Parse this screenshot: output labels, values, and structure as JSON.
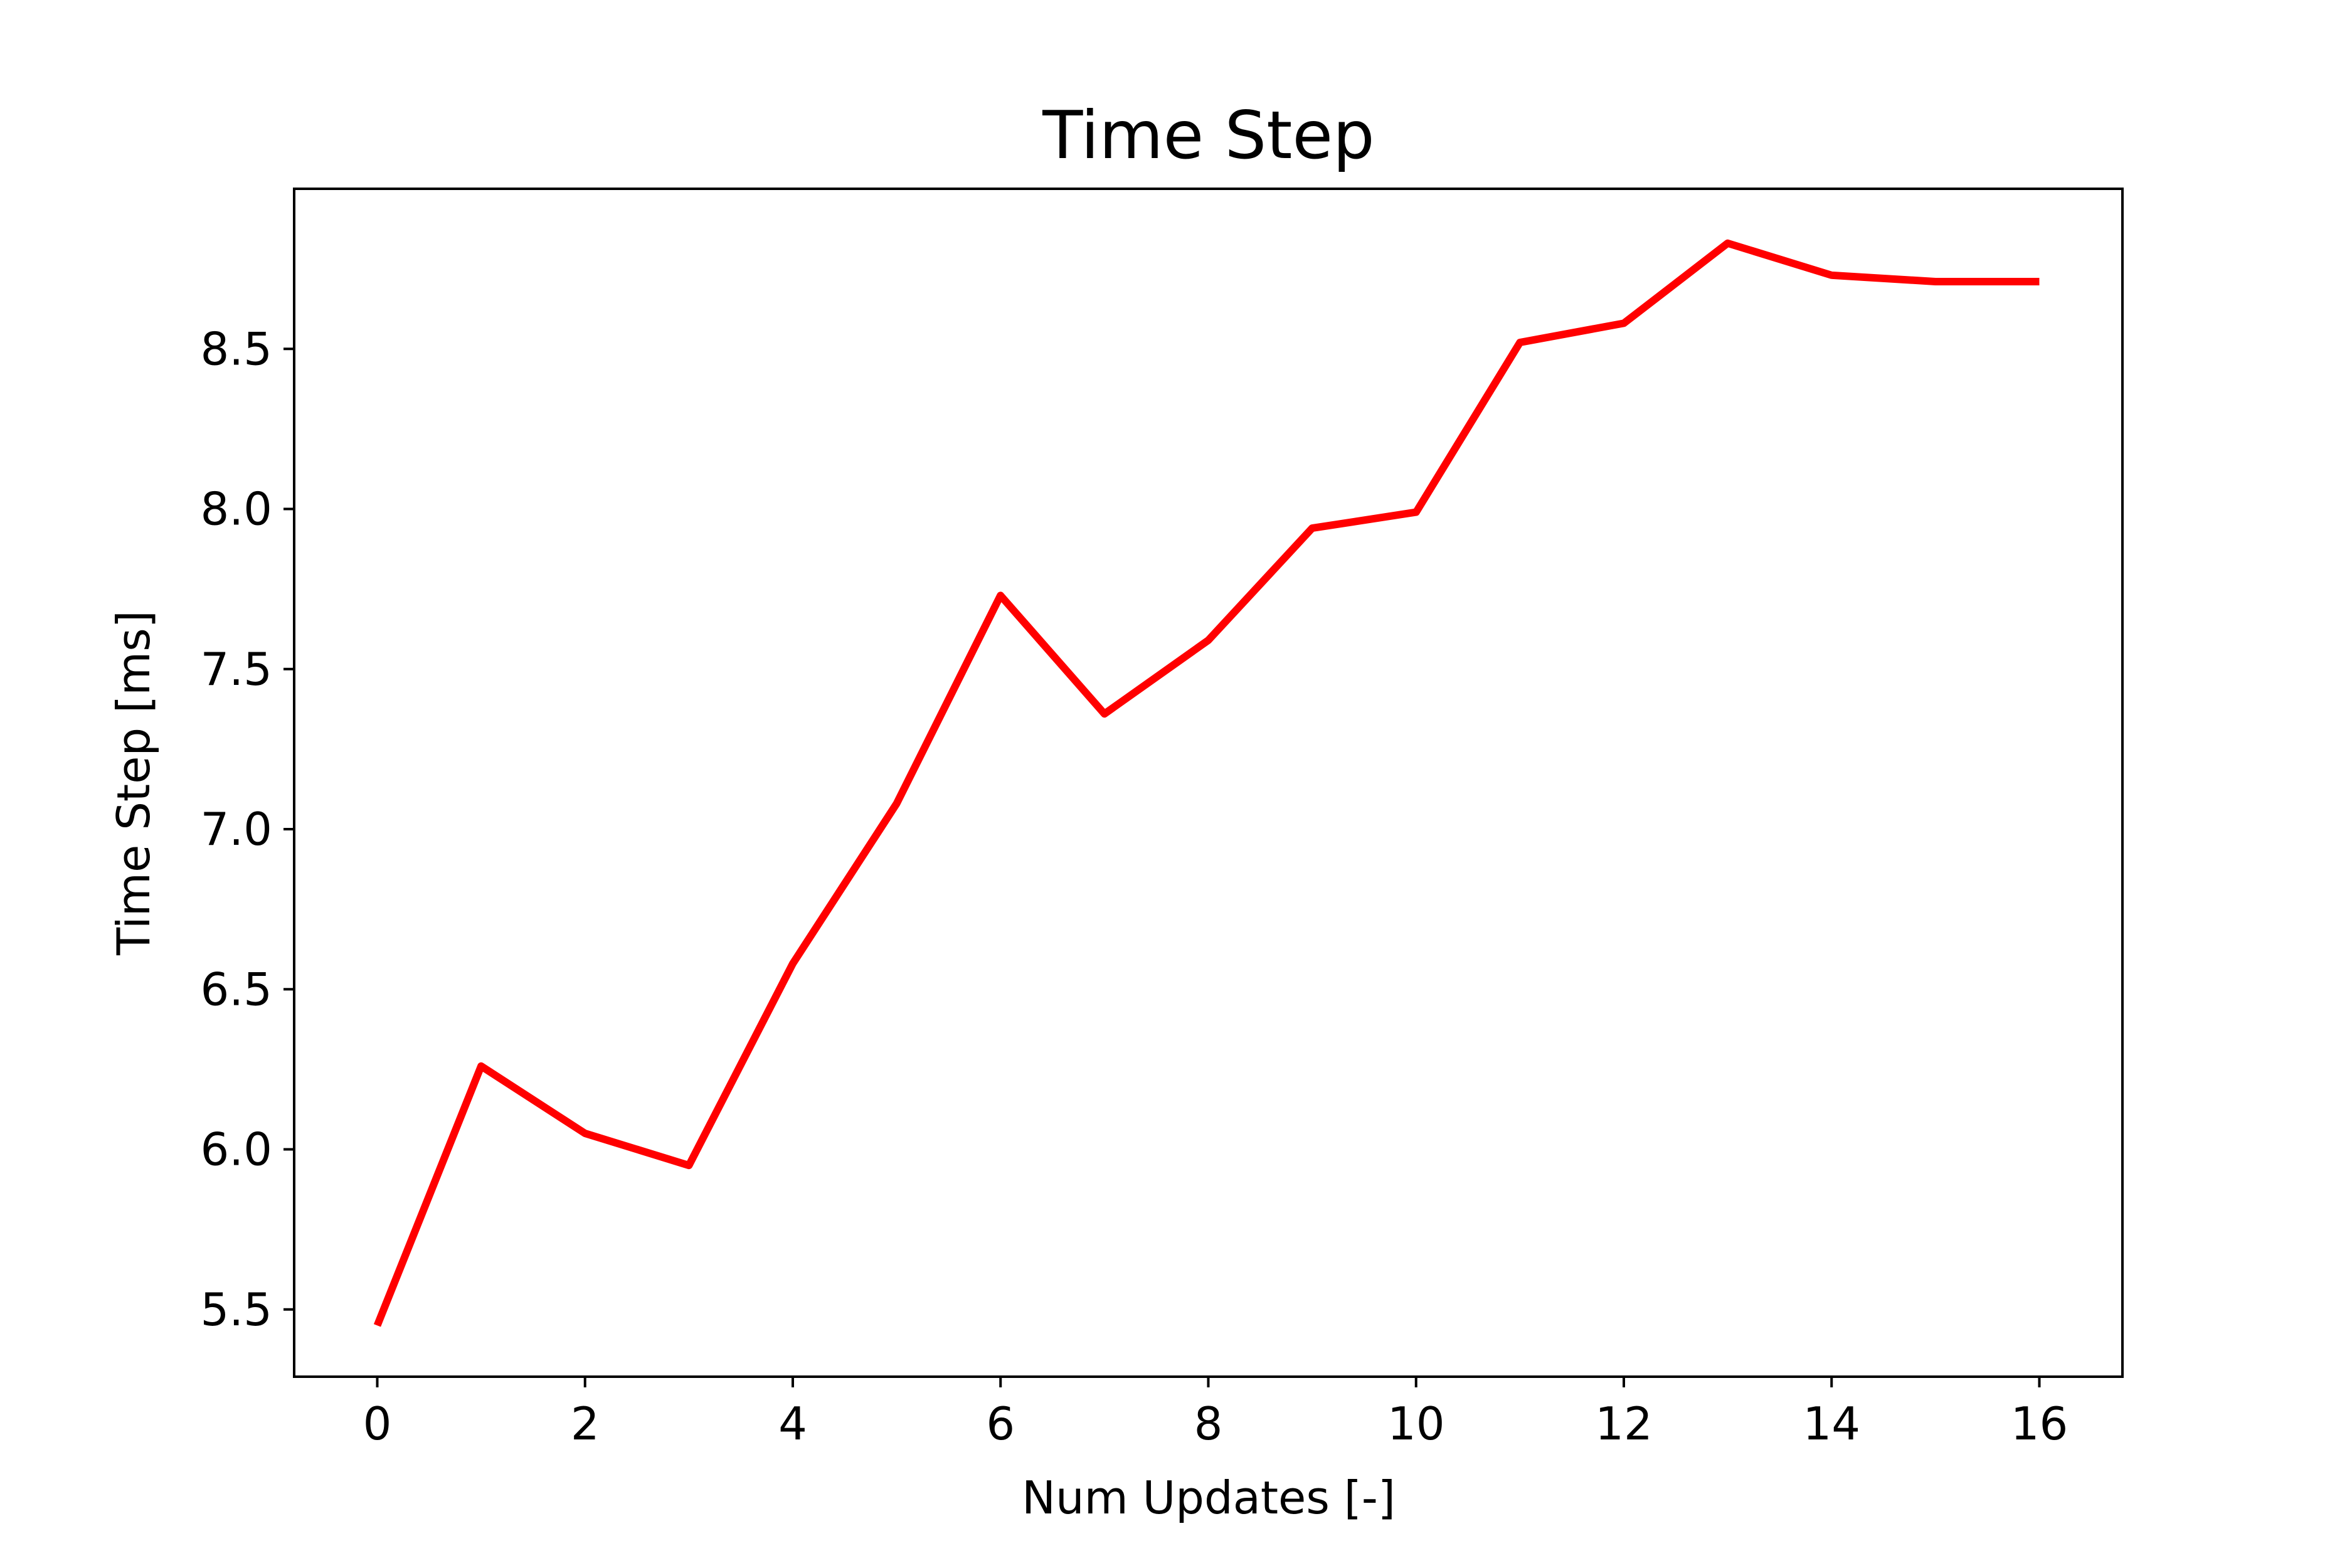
{
  "chart_data": {
    "type": "line",
    "title": "Time Step",
    "xlabel": "Num Updates [-]",
    "ylabel": "Time Step [ms]",
    "x": [
      0,
      1,
      2,
      3,
      4,
      5,
      6,
      7,
      8,
      9,
      10,
      11,
      12,
      13,
      14,
      15,
      16
    ],
    "series": [
      {
        "values": [
          5.45,
          6.26,
          6.05,
          5.95,
          6.58,
          7.08,
          7.73,
          7.36,
          7.59,
          7.94,
          7.99,
          8.52,
          8.58,
          8.83,
          8.73,
          8.71,
          8.71
        ],
        "color": "#ff0000"
      }
    ],
    "xlim": [
      -0.8,
      16.8
    ],
    "ylim": [
      5.29,
      9.0
    ],
    "xticks": [
      "0",
      "2",
      "4",
      "6",
      "8",
      "10",
      "12",
      "14",
      "16"
    ],
    "xtick_values": [
      0,
      2,
      4,
      6,
      8,
      10,
      12,
      14,
      16
    ],
    "yticks": [
      "5.5",
      "6.0",
      "6.5",
      "7.0",
      "7.5",
      "8.0",
      "8.5"
    ],
    "ytick_values": [
      5.5,
      6.0,
      6.5,
      7.0,
      7.5,
      8.0,
      8.5
    ],
    "grid": false,
    "legend": "none"
  }
}
